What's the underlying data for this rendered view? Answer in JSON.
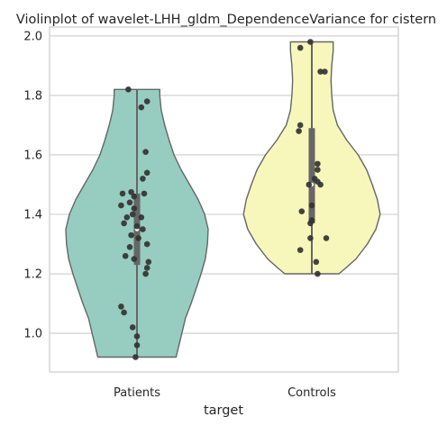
{
  "chart_data": {
    "type": "violin",
    "title": "Violinplot of wavelet-LHH_gldm_DependenceVariance for cistern",
    "xlabel": "target",
    "ylabel": "",
    "categories": [
      "Patients",
      "Controls"
    ],
    "ylim": [
      0.87,
      2.03
    ],
    "yticks": [
      1.0,
      1.2,
      1.4,
      1.6,
      1.8,
      2.0
    ],
    "ytick_labels": [
      "1.0",
      "1.2",
      "1.4",
      "1.6",
      "1.8",
      "2.0"
    ],
    "grid": true,
    "colors": {
      "Patients": "#96cdc0",
      "Controls": "#f7f7bc",
      "outline": "#666666",
      "points": "#333333",
      "grid": "#cccccc",
      "frame": "#cccccc"
    },
    "series": [
      {
        "category": "Patients",
        "range": [
          0.92,
          1.82
        ],
        "quartiles": [
          1.23,
          1.35,
          1.47
        ],
        "median": 1.35,
        "violin_profile": [
          [
            0.92,
            0.55
          ],
          [
            0.95,
            0.58
          ],
          [
            1.0,
            0.63
          ],
          [
            1.05,
            0.68
          ],
          [
            1.1,
            0.76
          ],
          [
            1.15,
            0.83
          ],
          [
            1.2,
            0.9
          ],
          [
            1.25,
            0.96
          ],
          [
            1.3,
            0.99
          ],
          [
            1.35,
            1.0
          ],
          [
            1.4,
            0.95
          ],
          [
            1.45,
            0.86
          ],
          [
            1.5,
            0.74
          ],
          [
            1.55,
            0.62
          ],
          [
            1.6,
            0.52
          ],
          [
            1.65,
            0.45
          ],
          [
            1.7,
            0.39
          ],
          [
            1.75,
            0.34
          ],
          [
            1.8,
            0.32
          ],
          [
            1.82,
            0.32
          ]
        ],
        "points": [
          {
            "x": -0.06,
            "y": 1.82
          },
          {
            "x": 0.07,
            "y": 1.78
          },
          {
            "x": 0.03,
            "y": 1.76
          },
          {
            "x": 0.06,
            "y": 1.61
          },
          {
            "x": 0.07,
            "y": 1.54
          },
          {
            "x": 0.04,
            "y": 1.52
          },
          {
            "x": 0.05,
            "y": 1.47
          },
          {
            "x": -0.1,
            "y": 1.47
          },
          {
            "x": -0.04,
            "y": 1.475
          },
          {
            "x": -0.02,
            "y": 1.46
          },
          {
            "x": -0.05,
            "y": 1.44
          },
          {
            "x": -0.11,
            "y": 1.43
          },
          {
            "x": -0.02,
            "y": 1.42
          },
          {
            "x": -0.03,
            "y": 1.4
          },
          {
            "x": -0.07,
            "y": 1.39
          },
          {
            "x": 0.03,
            "y": 1.39
          },
          {
            "x": -0.09,
            "y": 1.37
          },
          {
            "x": 0.0,
            "y": 1.36
          },
          {
            "x": 0.04,
            "y": 1.35
          },
          {
            "x": -0.04,
            "y": 1.33
          },
          {
            "x": 0.01,
            "y": 1.32
          },
          {
            "x": 0.07,
            "y": 1.3
          },
          {
            "x": -0.05,
            "y": 1.29
          },
          {
            "x": -0.08,
            "y": 1.26
          },
          {
            "x": -0.02,
            "y": 1.25
          },
          {
            "x": 0.08,
            "y": 1.24
          },
          {
            "x": 0.07,
            "y": 1.22
          },
          {
            "x": 0.06,
            "y": 1.2
          },
          {
            "x": -0.11,
            "y": 1.09
          },
          {
            "x": -0.09,
            "y": 1.07
          },
          {
            "x": -0.03,
            "y": 1.02
          },
          {
            "x": 0.0,
            "y": 0.99
          },
          {
            "x": 0.0,
            "y": 0.96
          },
          {
            "x": -0.01,
            "y": 0.92
          }
        ]
      },
      {
        "category": "Controls",
        "range": [
          1.2,
          1.98
        ],
        "quartiles": [
          1.37,
          1.5,
          1.69
        ],
        "median": 1.5,
        "violin_profile": [
          [
            1.2,
            0.38
          ],
          [
            1.22,
            0.48
          ],
          [
            1.25,
            0.62
          ],
          [
            1.3,
            0.78
          ],
          [
            1.35,
            0.9
          ],
          [
            1.4,
            0.96
          ],
          [
            1.45,
            0.92
          ],
          [
            1.5,
            0.85
          ],
          [
            1.55,
            0.77
          ],
          [
            1.6,
            0.65
          ],
          [
            1.65,
            0.49
          ],
          [
            1.7,
            0.36
          ],
          [
            1.75,
            0.3
          ],
          [
            1.8,
            0.28
          ],
          [
            1.85,
            0.27
          ],
          [
            1.9,
            0.28
          ],
          [
            1.95,
            0.3
          ],
          [
            1.98,
            0.3
          ]
        ],
        "points": [
          {
            "x": -0.01,
            "y": 1.98
          },
          {
            "x": -0.08,
            "y": 1.96
          },
          {
            "x": 0.06,
            "y": 1.88
          },
          {
            "x": 0.09,
            "y": 1.88
          },
          {
            "x": -0.08,
            "y": 1.7
          },
          {
            "x": -0.09,
            "y": 1.68
          },
          {
            "x": 0.04,
            "y": 1.57
          },
          {
            "x": 0.04,
            "y": 1.55
          },
          {
            "x": 0.02,
            "y": 1.52
          },
          {
            "x": 0.04,
            "y": 1.51
          },
          {
            "x": -0.02,
            "y": 1.5
          },
          {
            "x": 0.06,
            "y": 1.5
          },
          {
            "x": 0.0,
            "y": 1.43
          },
          {
            "x": -0.07,
            "y": 1.41
          },
          {
            "x": 0.0,
            "y": 1.38
          },
          {
            "x": -0.01,
            "y": 1.37
          },
          {
            "x": -0.01,
            "y": 1.32
          },
          {
            "x": 0.1,
            "y": 1.32
          },
          {
            "x": -0.08,
            "y": 1.28
          },
          {
            "x": 0.03,
            "y": 1.24
          },
          {
            "x": 0.04,
            "y": 1.2
          }
        ]
      }
    ]
  }
}
